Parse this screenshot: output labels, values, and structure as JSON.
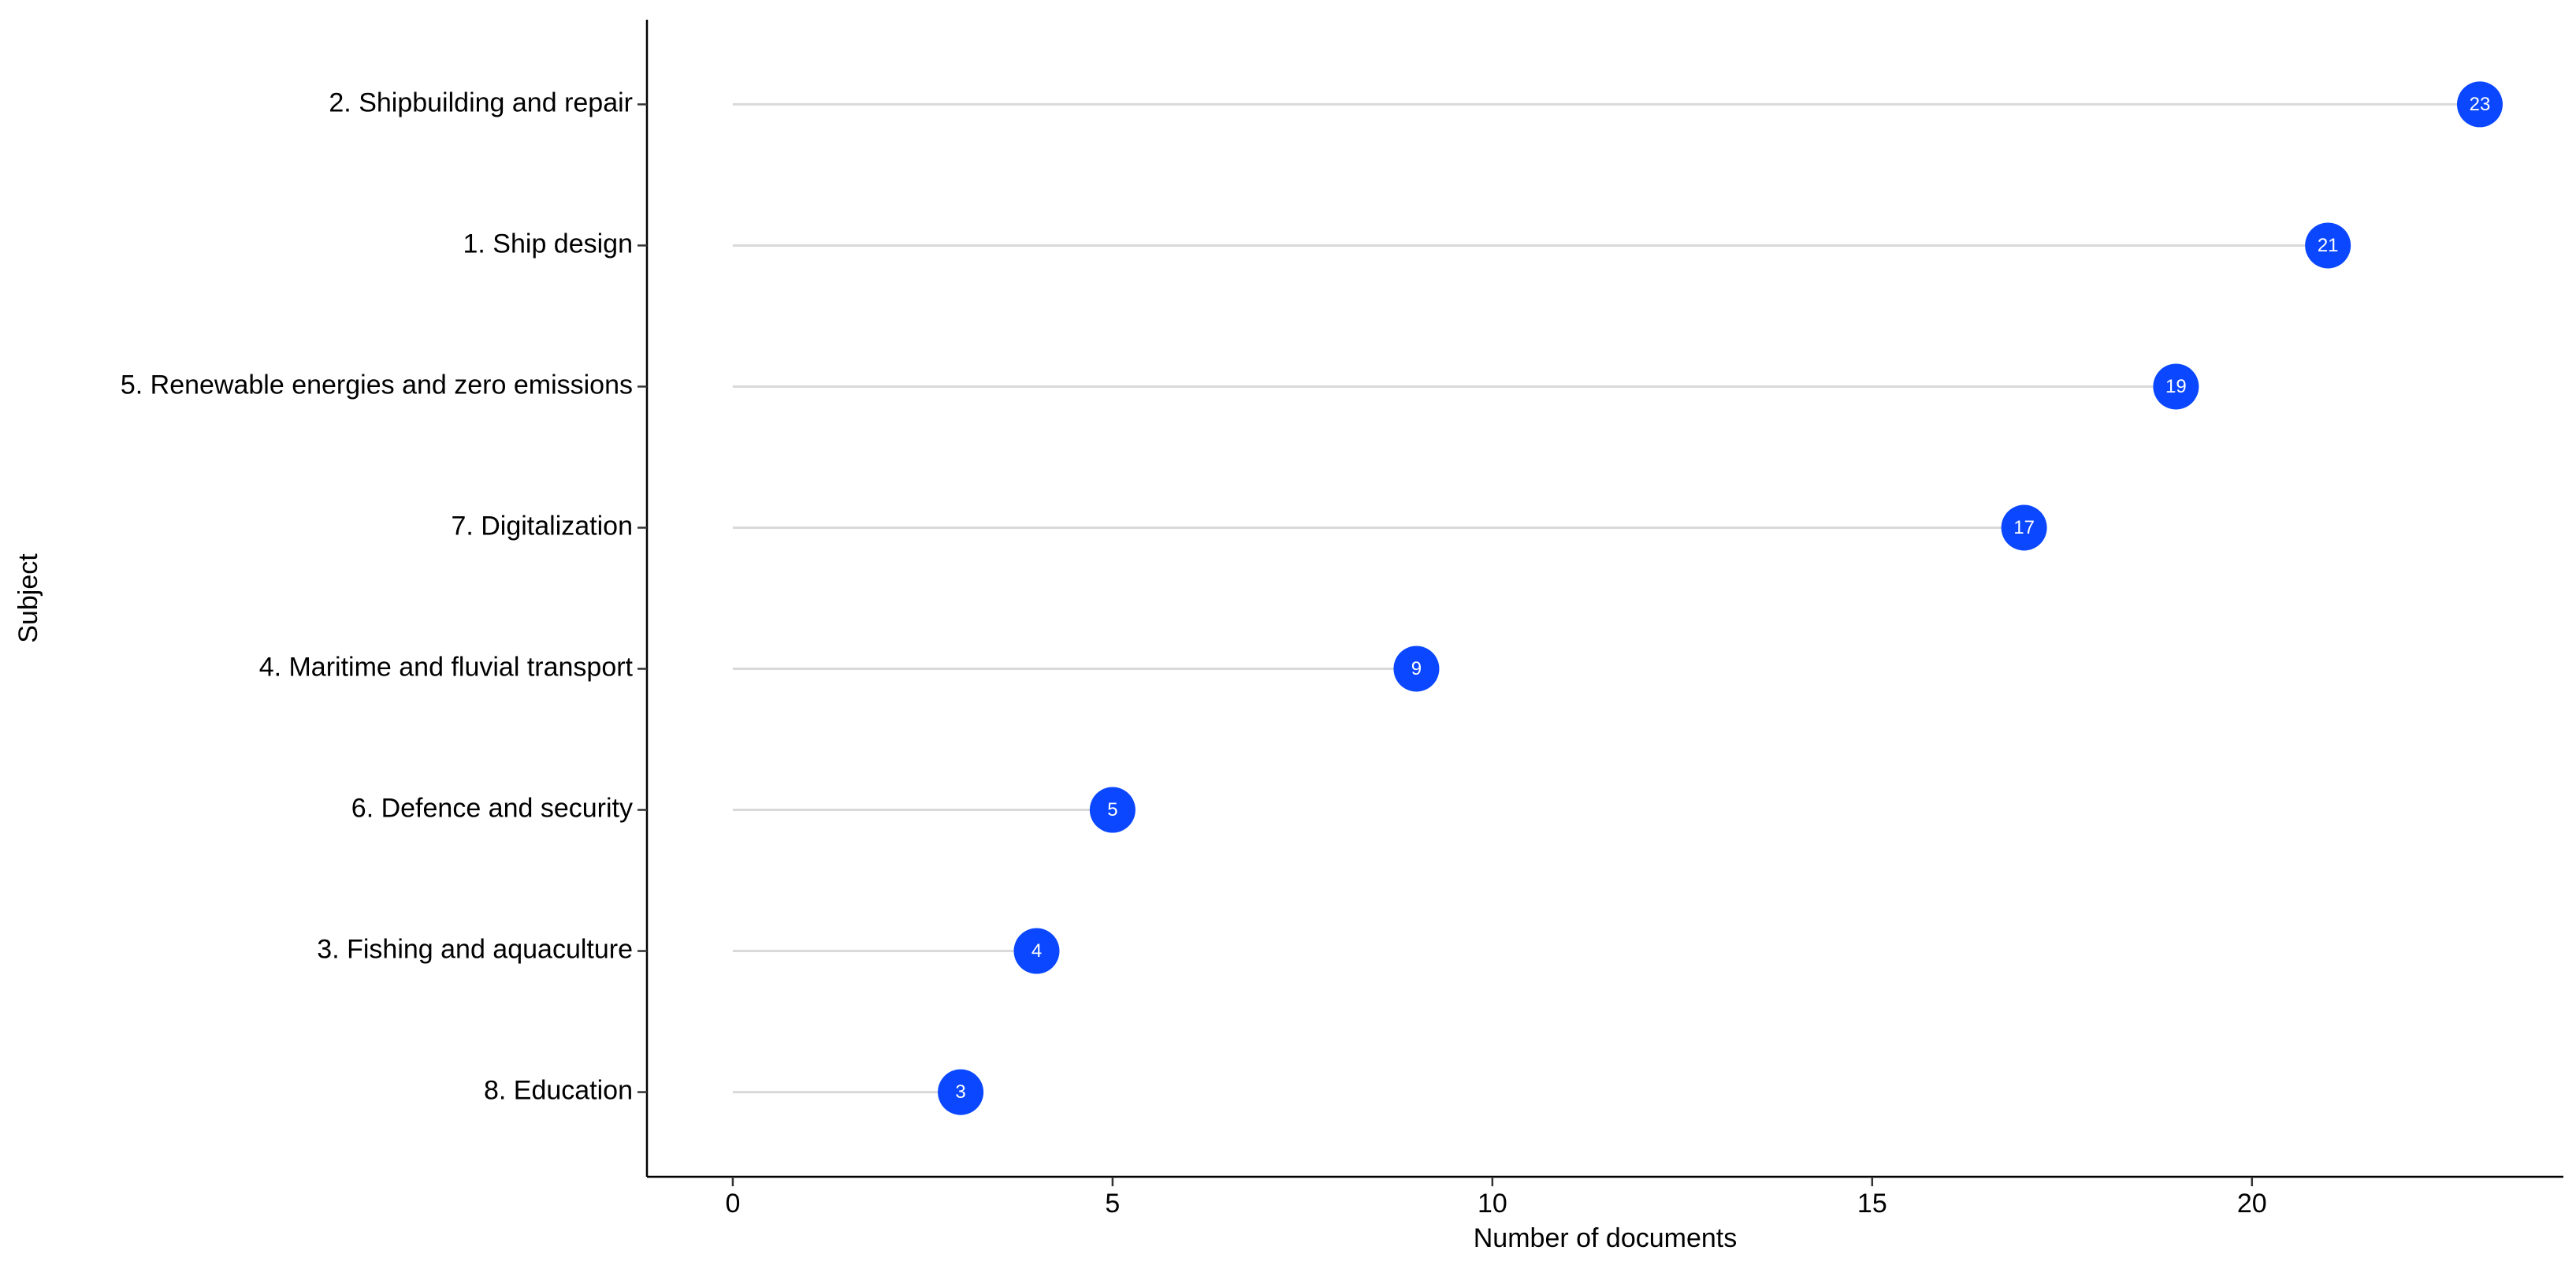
{
  "chart_data": {
    "type": "lollipop",
    "orientation": "horizontal",
    "x_label": "Number of documents",
    "y_label": "Subject",
    "categories": [
      "2. Shipbuilding and repair",
      "1. Ship design",
      "5. Renewable energies and zero emissions",
      "7. Digitalization",
      "4. Maritime and fluvial transport",
      "6. Defence and security",
      "3. Fishing and aquaculture",
      "8. Education"
    ],
    "values": [
      23,
      21,
      19,
      17,
      9,
      5,
      4,
      3
    ],
    "color": "#0a47ff",
    "segment_color": "#d9d9d9",
    "xlim": [
      -1.13,
      24.1
    ],
    "xticks": [
      0,
      5,
      10,
      15,
      20
    ],
    "grid": false
  }
}
